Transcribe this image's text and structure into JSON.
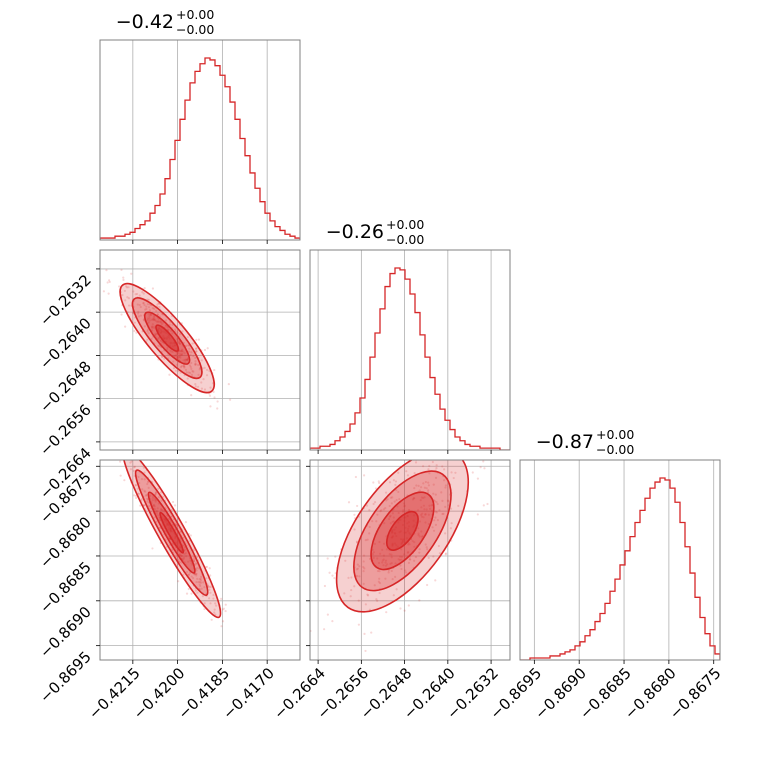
{
  "chart_data": {
    "type": "corner",
    "color": "#d62728",
    "grid": true,
    "parameters": [
      {
        "title": "−0.42",
        "plus": "+0.00",
        "minus": "−0.00",
        "range": [
          -0.4226,
          -0.4159
        ]
      },
      {
        "title": "−0.26",
        "plus": "+0.00",
        "minus": "−0.00",
        "range": [
          -0.26655,
          -0.26285
        ]
      },
      {
        "title": "−0.87",
        "plus": "+0.00",
        "minus": "−0.00",
        "range": [
          -0.86966,
          -0.86743
        ]
      }
    ],
    "x_ticks": [
      {
        "values": [
          -0.4215,
          -0.42,
          -0.4185,
          -0.417
        ],
        "labels": [
          "−0.4215",
          "−0.4200",
          "−0.4185",
          "−0.4170"
        ]
      },
      {
        "values": [
          -0.2664,
          -0.2656,
          -0.2648,
          -0.264,
          -0.2632
        ],
        "labels": [
          "−0.2664",
          "−0.2656",
          "−0.2648",
          "−0.2640",
          "−0.2632"
        ]
      },
      {
        "values": [
          -0.8695,
          -0.869,
          -0.8685,
          -0.868,
          -0.8675
        ],
        "labels": [
          "−0.8695",
          "−0.8690",
          "−0.8685",
          "−0.8680",
          "−0.8675"
        ]
      }
    ],
    "y_ticks": [
      null,
      {
        "values": [
          -0.2632,
          -0.264,
          -0.2648,
          -0.2656,
          -0.2664
        ],
        "labels": [
          "−0.2632",
          "−0.2640",
          "−0.2648",
          "−0.2656",
          "−0.2664"
        ]
      },
      {
        "values": [
          -0.8675,
          -0.868,
          -0.8685,
          -0.869,
          -0.8695
        ],
        "labels": [
          "−0.8675",
          "−0.8680",
          "−0.8685",
          "−0.8690",
          "−0.8695"
        ]
      }
    ],
    "marginals": [
      {
        "parameter": 0,
        "counts": [
          1,
          1,
          1,
          2,
          2,
          3,
          4,
          6,
          8,
          10,
          14,
          18,
          24,
          32,
          42,
          52,
          63,
          73,
          82,
          88,
          92,
          95,
          94,
          91,
          86,
          80,
          72,
          63,
          53,
          44,
          35,
          27,
          20,
          14,
          10,
          7,
          5,
          3,
          2,
          1
        ]
      },
      {
        "parameter": 1,
        "counts": [
          1,
          1,
          2,
          2,
          3,
          5,
          7,
          10,
          14,
          20,
          28,
          38,
          50,
          63,
          76,
          88,
          95,
          98,
          97,
          92,
          84,
          74,
          62,
          50,
          39,
          30,
          22,
          16,
          11,
          7,
          5,
          3,
          2,
          2,
          1,
          1,
          1,
          1,
          0,
          0
        ]
      },
      {
        "parameter": 2,
        "counts": [
          0,
          0,
          1,
          1,
          1,
          1,
          2,
          2,
          3,
          4,
          5,
          7,
          9,
          12,
          15,
          19,
          23,
          28,
          34,
          40,
          47,
          54,
          61,
          68,
          74,
          80,
          85,
          88,
          90,
          89,
          85,
          78,
          68,
          56,
          43,
          31,
          21,
          13,
          7,
          3
        ]
      }
    ],
    "joint": [
      {
        "x": 0,
        "y": 1,
        "mean": [
          -0.42035,
          -0.26448
        ],
        "sd": [
          0.00075,
          0.00048
        ],
        "corr": -0.85
      },
      {
        "x": 0,
        "y": 2,
        "mean": [
          -0.4202,
          -0.86824
        ],
        "sd": [
          0.00078,
          0.00045
        ],
        "corr": -0.95
      },
      {
        "x": 1,
        "y": 2,
        "mean": [
          -0.26484,
          -0.86822
        ],
        "sd": [
          0.00058,
          0.00043
        ],
        "corr": 0.6
      }
    ]
  }
}
